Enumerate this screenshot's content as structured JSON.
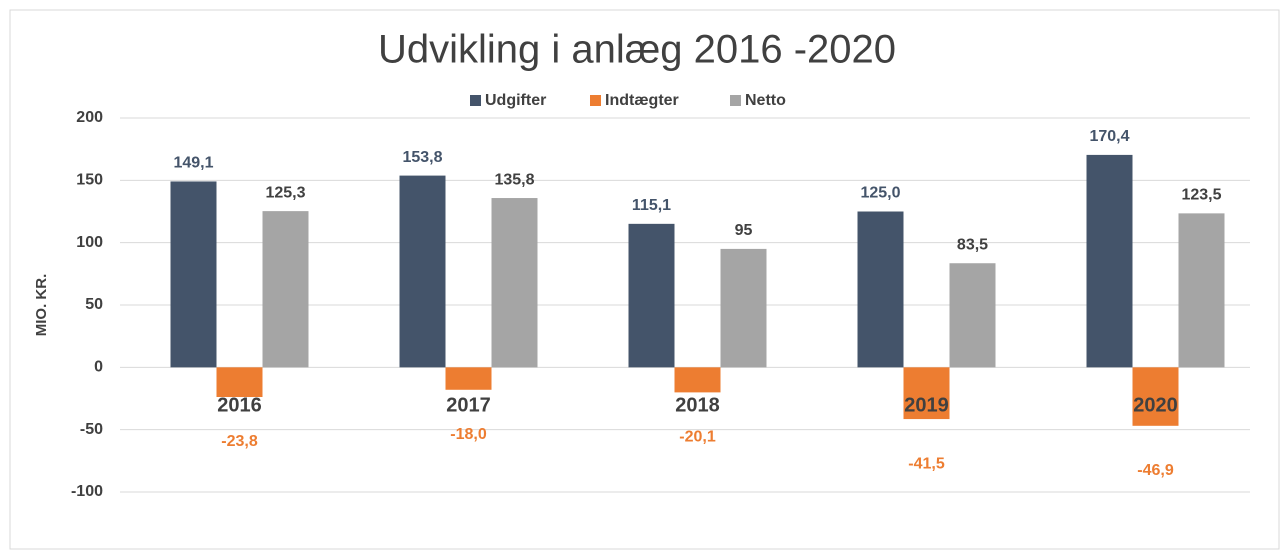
{
  "chart_data": {
    "type": "bar",
    "title": "Udvikling i anlæg 2016 -2020",
    "y_label": "MIO. KR.",
    "categories": [
      "2016",
      "2017",
      "2018",
      "2019",
      "2020"
    ],
    "series": [
      {
        "name": "Udgifter",
        "color": "#44546a",
        "label_color": "#44546a",
        "values": [
          149.1,
          153.8,
          115.1,
          125.0,
          170.4
        ],
        "value_labels": [
          "149,1",
          "153,8",
          "115,1",
          "125,0",
          "170,4"
        ]
      },
      {
        "name": "Indtægter",
        "color": "#ed7d31",
        "label_color": "#ed7d31",
        "values": [
          -23.8,
          -18.0,
          -20.1,
          -41.5,
          -46.9
        ],
        "value_labels": [
          "-23,8",
          "-18,0",
          "-20,1",
          "-41,5",
          "-46,9"
        ]
      },
      {
        "name": "Netto",
        "color": "#a5a5a5",
        "label_color": "#404040",
        "values": [
          125.3,
          135.8,
          95,
          83.5,
          123.5
        ],
        "value_labels": [
          "125,3",
          "135,8",
          "95",
          "83,5",
          "123,5"
        ]
      }
    ],
    "ylim": [
      -100,
      200
    ],
    "yticks": [
      -100,
      -50,
      0,
      50,
      100,
      150,
      200
    ],
    "grid": true,
    "legend": "top"
  }
}
